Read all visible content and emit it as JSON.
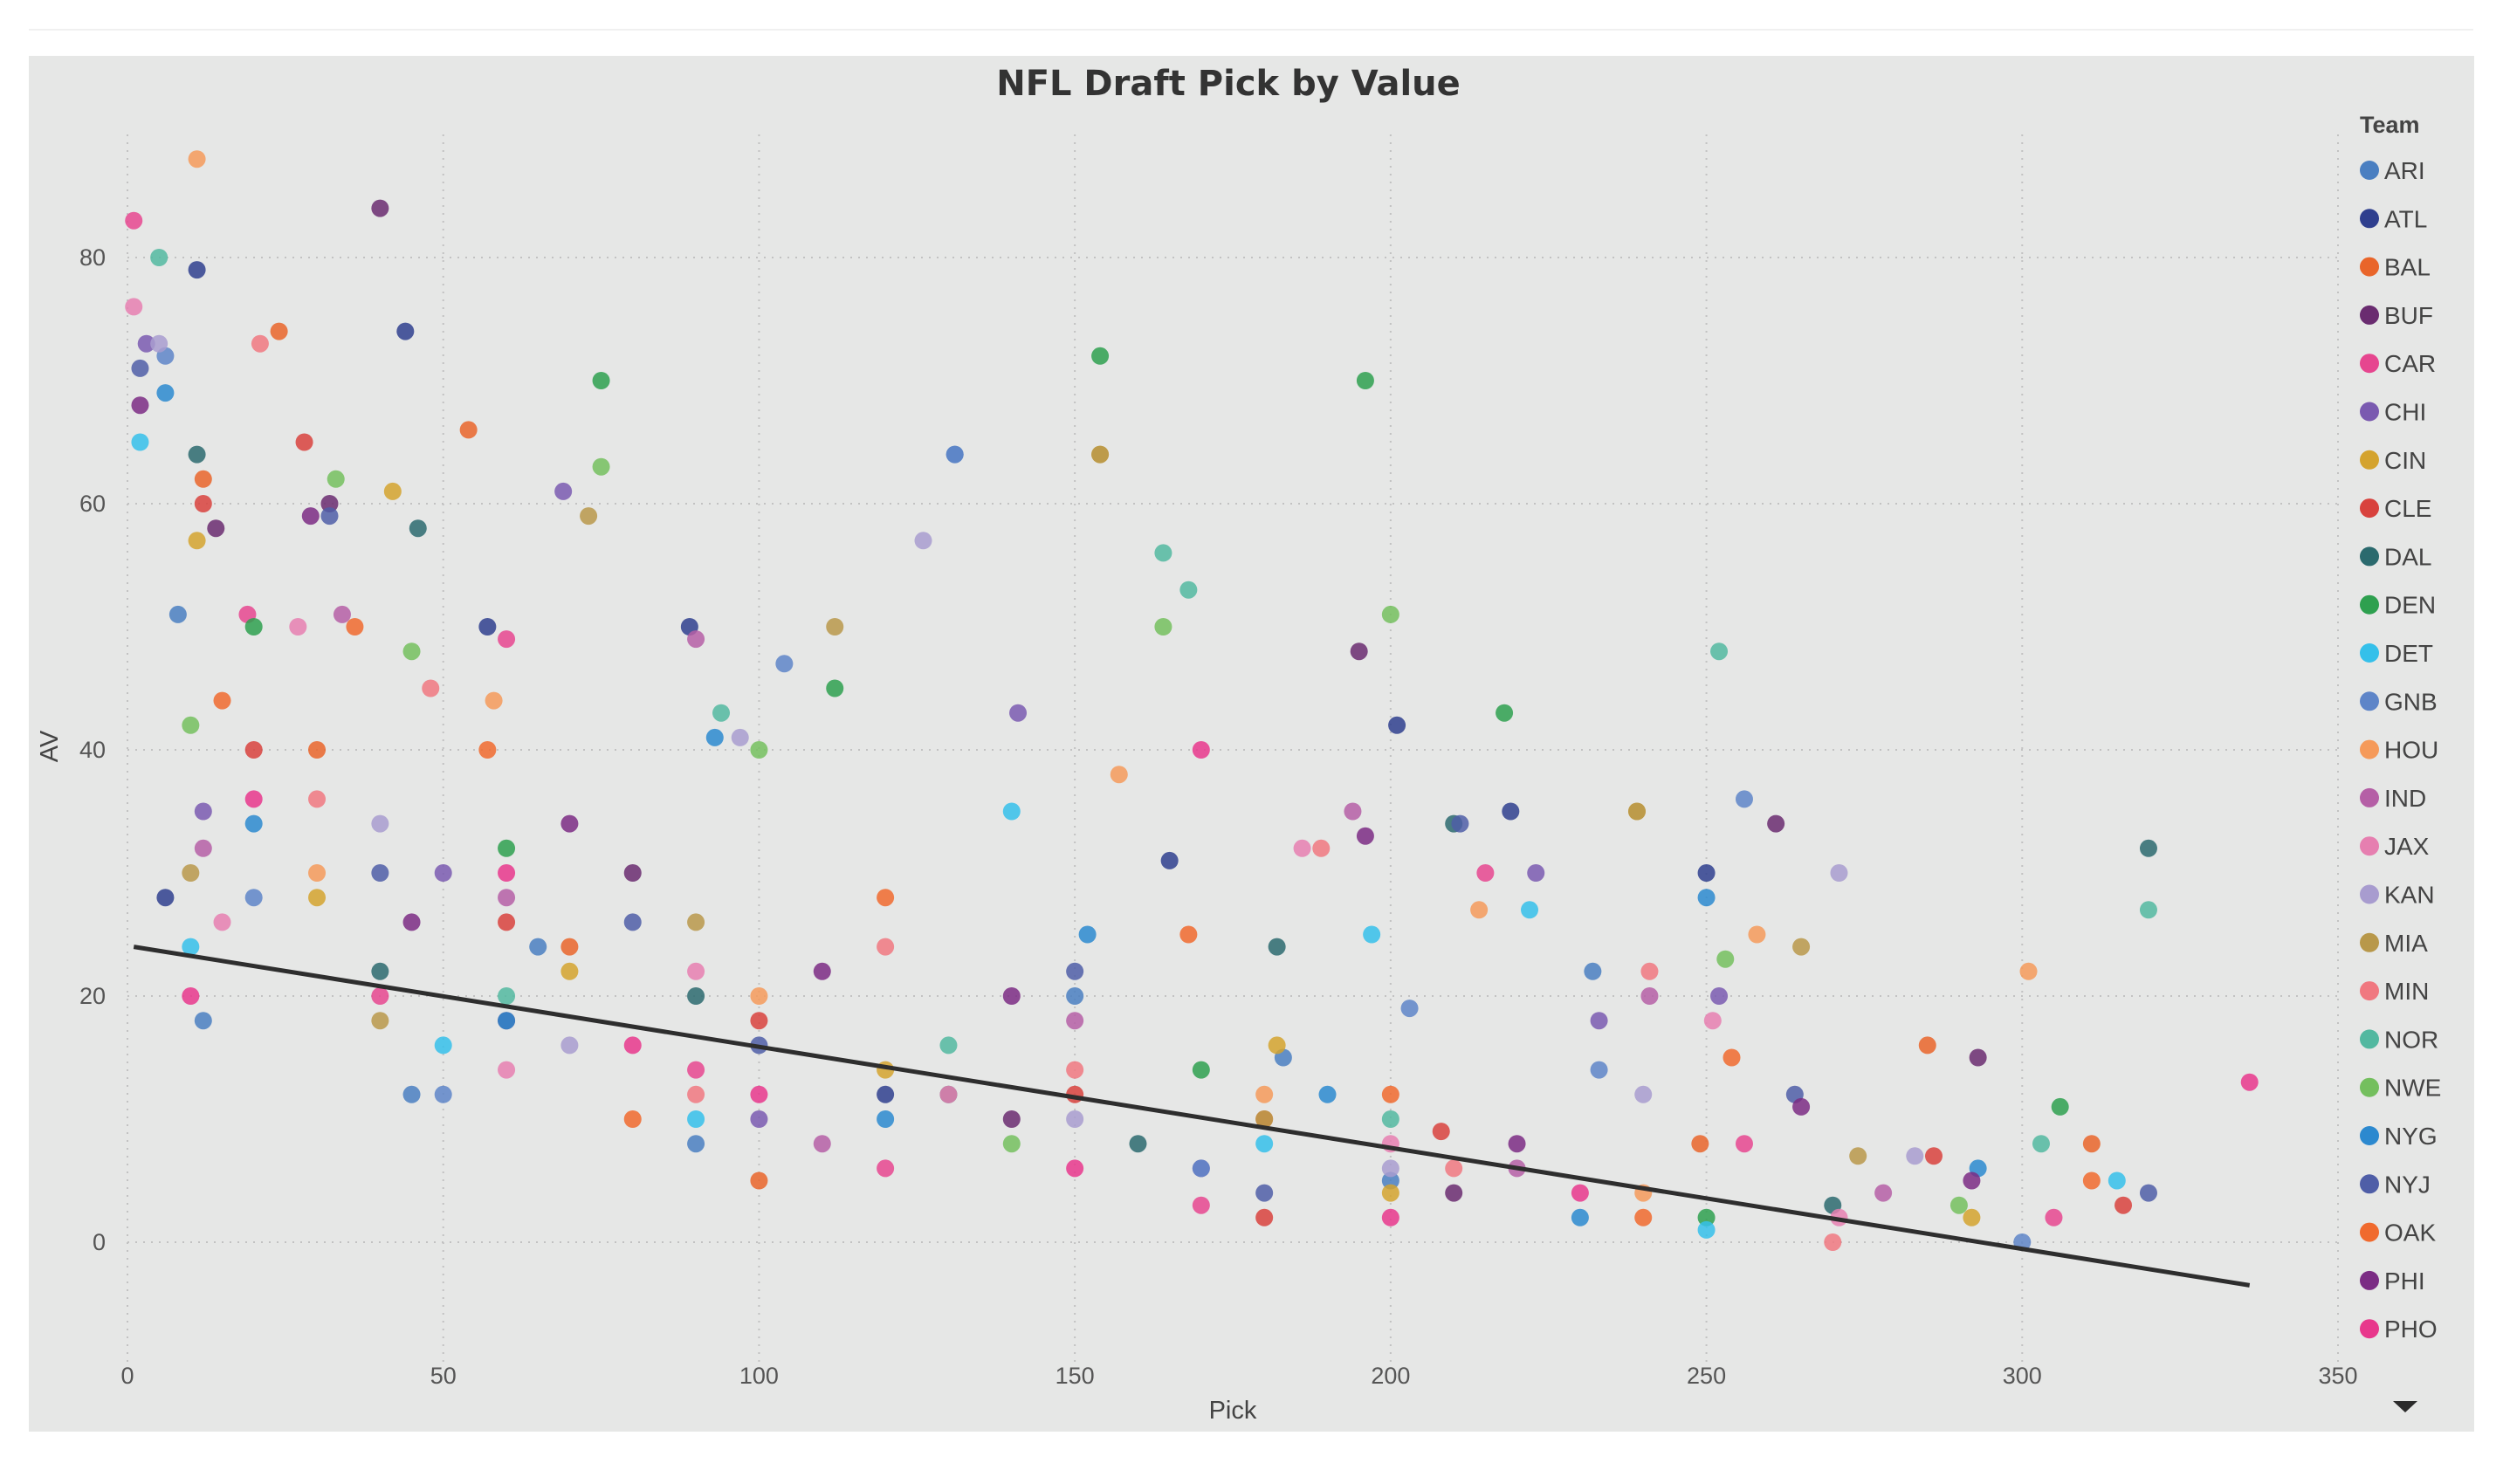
{
  "chart_data": {
    "type": "scatter",
    "title": "NFL Draft Pick by Value",
    "xlabel": "Pick",
    "ylabel": "AV",
    "xlim": [
      0,
      350
    ],
    "ylim": [
      -10,
      90
    ],
    "x_ticks": [
      0,
      50,
      100,
      150,
      200,
      250,
      300,
      350
    ],
    "y_ticks": [
      0,
      20,
      40,
      60,
      80
    ],
    "grid": true,
    "legend_title": "Team",
    "legend_position": "right",
    "series": [
      {
        "name": "ARI",
        "color": "#4a7fc1",
        "points": [
          [
            12,
            18
          ],
          [
            131,
            64
          ],
          [
            183,
            15
          ],
          [
            232,
            22
          ],
          [
            45,
            12
          ],
          [
            90,
            8
          ],
          [
            200,
            5
          ],
          [
            150,
            20
          ],
          [
            8,
            51
          ],
          [
            65,
            24
          ]
        ]
      },
      {
        "name": "ATL",
        "color": "#2f3f8e",
        "points": [
          [
            11,
            79
          ],
          [
            44,
            74
          ],
          [
            57,
            50
          ],
          [
            89,
            50
          ],
          [
            201,
            42
          ],
          [
            219,
            35
          ],
          [
            250,
            30
          ],
          [
            165,
            31
          ],
          [
            6,
            28
          ],
          [
            120,
            12
          ]
        ]
      },
      {
        "name": "BAL",
        "color": "#e9652a",
        "points": [
          [
            24,
            74
          ],
          [
            54,
            66
          ],
          [
            12,
            62
          ],
          [
            285,
            16
          ],
          [
            249,
            8
          ],
          [
            311,
            8
          ],
          [
            70,
            24
          ],
          [
            100,
            5
          ],
          [
            180,
            10
          ],
          [
            30,
            40
          ]
        ]
      },
      {
        "name": "BUF",
        "color": "#6a2c70",
        "points": [
          [
            40,
            84
          ],
          [
            32,
            60
          ],
          [
            14,
            58
          ],
          [
            195,
            48
          ],
          [
            261,
            34
          ],
          [
            293,
            15
          ],
          [
            210,
            4
          ],
          [
            140,
            10
          ],
          [
            80,
            30
          ],
          [
            60,
            18
          ]
        ]
      },
      {
        "name": "CAR",
        "color": "#e6468f",
        "points": [
          [
            1,
            83
          ],
          [
            19,
            51
          ],
          [
            60,
            49
          ],
          [
            215,
            30
          ],
          [
            256,
            8
          ],
          [
            305,
            2
          ],
          [
            120,
            6
          ],
          [
            170,
            3
          ],
          [
            40,
            20
          ],
          [
            90,
            14
          ]
        ]
      },
      {
        "name": "CHI",
        "color": "#7a5ab0",
        "points": [
          [
            3,
            73
          ],
          [
            69,
            61
          ],
          [
            141,
            43
          ],
          [
            223,
            30
          ],
          [
            252,
            20
          ],
          [
            233,
            18
          ],
          [
            100,
            10
          ],
          [
            50,
            30
          ],
          [
            12,
            35
          ],
          [
            170,
            6
          ]
        ]
      },
      {
        "name": "CIN",
        "color": "#d4a32e",
        "points": [
          [
            11,
            57
          ],
          [
            42,
            61
          ],
          [
            154,
            64
          ],
          [
            239,
            35
          ],
          [
            292,
            2
          ],
          [
            182,
            16
          ],
          [
            70,
            22
          ],
          [
            120,
            14
          ],
          [
            30,
            28
          ],
          [
            200,
            4
          ]
        ]
      },
      {
        "name": "CLE",
        "color": "#d8423d",
        "points": [
          [
            28,
            65
          ],
          [
            12,
            60
          ],
          [
            208,
            9
          ],
          [
            286,
            7
          ],
          [
            316,
            3
          ],
          [
            150,
            12
          ],
          [
            60,
            26
          ],
          [
            100,
            18
          ],
          [
            20,
            40
          ],
          [
            180,
            2
          ]
        ]
      },
      {
        "name": "DAL",
        "color": "#2b6a6e",
        "points": [
          [
            46,
            58
          ],
          [
            11,
            64
          ],
          [
            320,
            32
          ],
          [
            210,
            34
          ],
          [
            182,
            24
          ],
          [
            270,
            3
          ],
          [
            90,
            20
          ],
          [
            130,
            12
          ],
          [
            40,
            22
          ],
          [
            160,
            8
          ]
        ]
      },
      {
        "name": "DEN",
        "color": "#2ea04f",
        "points": [
          [
            154,
            72
          ],
          [
            196,
            70
          ],
          [
            75,
            70
          ],
          [
            218,
            43
          ],
          [
            306,
            11
          ],
          [
            112,
            45
          ],
          [
            60,
            32
          ],
          [
            250,
            2
          ],
          [
            20,
            50
          ],
          [
            170,
            14
          ]
        ]
      },
      {
        "name": "DET",
        "color": "#35c0ea",
        "points": [
          [
            2,
            65
          ],
          [
            140,
            35
          ],
          [
            197,
            25
          ],
          [
            222,
            27
          ],
          [
            315,
            5
          ],
          [
            90,
            10
          ],
          [
            50,
            16
          ],
          [
            180,
            8
          ],
          [
            10,
            24
          ],
          [
            250,
            1
          ]
        ]
      },
      {
        "name": "GNB",
        "color": "#5e85c8",
        "points": [
          [
            6,
            72
          ],
          [
            131,
            64
          ],
          [
            256,
            36
          ],
          [
            203,
            19
          ],
          [
            233,
            14
          ],
          [
            104,
            47
          ],
          [
            50,
            12
          ],
          [
            170,
            6
          ],
          [
            20,
            28
          ],
          [
            300,
            0
          ]
        ]
      },
      {
        "name": "HOU",
        "color": "#f59a5a",
        "points": [
          [
            11,
            88
          ],
          [
            58,
            44
          ],
          [
            157,
            38
          ],
          [
            258,
            25
          ],
          [
            301,
            22
          ],
          [
            214,
            27
          ],
          [
            100,
            20
          ],
          [
            30,
            30
          ],
          [
            180,
            12
          ],
          [
            240,
            4
          ]
        ]
      },
      {
        "name": "IND",
        "color": "#b55fa6",
        "points": [
          [
            34,
            51
          ],
          [
            90,
            49
          ],
          [
            194,
            35
          ],
          [
            241,
            20
          ],
          [
            278,
            4
          ],
          [
            150,
            18
          ],
          [
            60,
            28
          ],
          [
            110,
            8
          ],
          [
            12,
            32
          ],
          [
            220,
            6
          ]
        ]
      },
      {
        "name": "JAX",
        "color": "#e67fb0",
        "points": [
          [
            1,
            76
          ],
          [
            27,
            50
          ],
          [
            186,
            32
          ],
          [
            251,
            18
          ],
          [
            271,
            2
          ],
          [
            130,
            12
          ],
          [
            60,
            14
          ],
          [
            90,
            22
          ],
          [
            15,
            26
          ],
          [
            200,
            8
          ]
        ]
      },
      {
        "name": "KAN",
        "color": "#a89ccf",
        "points": [
          [
            5,
            73
          ],
          [
            126,
            57
          ],
          [
            271,
            30
          ],
          [
            283,
            7
          ],
          [
            97,
            41
          ],
          [
            150,
            10
          ],
          [
            40,
            34
          ],
          [
            200,
            6
          ],
          [
            70,
            16
          ],
          [
            240,
            12
          ]
        ]
      },
      {
        "name": "MIA",
        "color": "#b8984a",
        "points": [
          [
            154,
            64
          ],
          [
            73,
            59
          ],
          [
            112,
            50
          ],
          [
            239,
            35
          ],
          [
            265,
            24
          ],
          [
            274,
            7
          ],
          [
            90,
            26
          ],
          [
            40,
            18
          ],
          [
            180,
            10
          ],
          [
            10,
            30
          ]
        ]
      },
      {
        "name": "MIN",
        "color": "#f07880",
        "points": [
          [
            21,
            73
          ],
          [
            48,
            45
          ],
          [
            189,
            32
          ],
          [
            241,
            22
          ],
          [
            270,
            0
          ],
          [
            150,
            14
          ],
          [
            90,
            12
          ],
          [
            120,
            24
          ],
          [
            30,
            36
          ],
          [
            210,
            6
          ]
        ]
      },
      {
        "name": "NOR",
        "color": "#52b8a0",
        "points": [
          [
            5,
            80
          ],
          [
            164,
            56
          ],
          [
            168,
            53
          ],
          [
            252,
            48
          ],
          [
            320,
            27
          ],
          [
            303,
            8
          ],
          [
            94,
            43
          ],
          [
            60,
            20
          ],
          [
            130,
            16
          ],
          [
            200,
            10
          ]
        ]
      },
      {
        "name": "NWE",
        "color": "#74bf5e",
        "points": [
          [
            33,
            62
          ],
          [
            75,
            63
          ],
          [
            164,
            50
          ],
          [
            200,
            51
          ],
          [
            253,
            23
          ],
          [
            100,
            40
          ],
          [
            45,
            48
          ],
          [
            140,
            8
          ],
          [
            10,
            42
          ],
          [
            290,
            3
          ]
        ]
      },
      {
        "name": "NYG",
        "color": "#2c89cf",
        "points": [
          [
            6,
            69
          ],
          [
            93,
            41
          ],
          [
            152,
            25
          ],
          [
            250,
            28
          ],
          [
            293,
            6
          ],
          [
            190,
            12
          ],
          [
            60,
            18
          ],
          [
            120,
            10
          ],
          [
            20,
            34
          ],
          [
            230,
            2
          ]
        ]
      },
      {
        "name": "NYJ",
        "color": "#4f5ea7",
        "points": [
          [
            2,
            71
          ],
          [
            32,
            59
          ],
          [
            211,
            34
          ],
          [
            264,
            12
          ],
          [
            320,
            4
          ],
          [
            150,
            22
          ],
          [
            80,
            26
          ],
          [
            100,
            16
          ],
          [
            40,
            30
          ],
          [
            180,
            4
          ]
        ]
      },
      {
        "name": "OAK",
        "color": "#f06a2e",
        "points": [
          [
            36,
            50
          ],
          [
            57,
            40
          ],
          [
            168,
            25
          ],
          [
            254,
            15
          ],
          [
            311,
            5
          ],
          [
            120,
            28
          ],
          [
            80,
            10
          ],
          [
            200,
            12
          ],
          [
            15,
            44
          ],
          [
            240,
            2
          ]
        ]
      },
      {
        "name": "PHI",
        "color": "#7b2c84",
        "points": [
          [
            2,
            68
          ],
          [
            29,
            59
          ],
          [
            196,
            33
          ],
          [
            265,
            11
          ],
          [
            292,
            5
          ],
          [
            140,
            20
          ],
          [
            70,
            34
          ],
          [
            110,
            22
          ],
          [
            45,
            26
          ],
          [
            220,
            8
          ]
        ]
      },
      {
        "name": "PHO",
        "color": "#e8378c",
        "points": [
          [
            336,
            13
          ],
          [
            170,
            40
          ],
          [
            60,
            30
          ],
          [
            20,
            36
          ],
          [
            100,
            12
          ],
          [
            230,
            4
          ],
          [
            150,
            6
          ],
          [
            200,
            2
          ],
          [
            80,
            16
          ],
          [
            10,
            20
          ]
        ]
      }
    ],
    "trendline": {
      "points": [
        [
          1,
          24
        ],
        [
          336,
          -3.5
        ]
      ],
      "color": "#2e2e2e"
    }
  }
}
